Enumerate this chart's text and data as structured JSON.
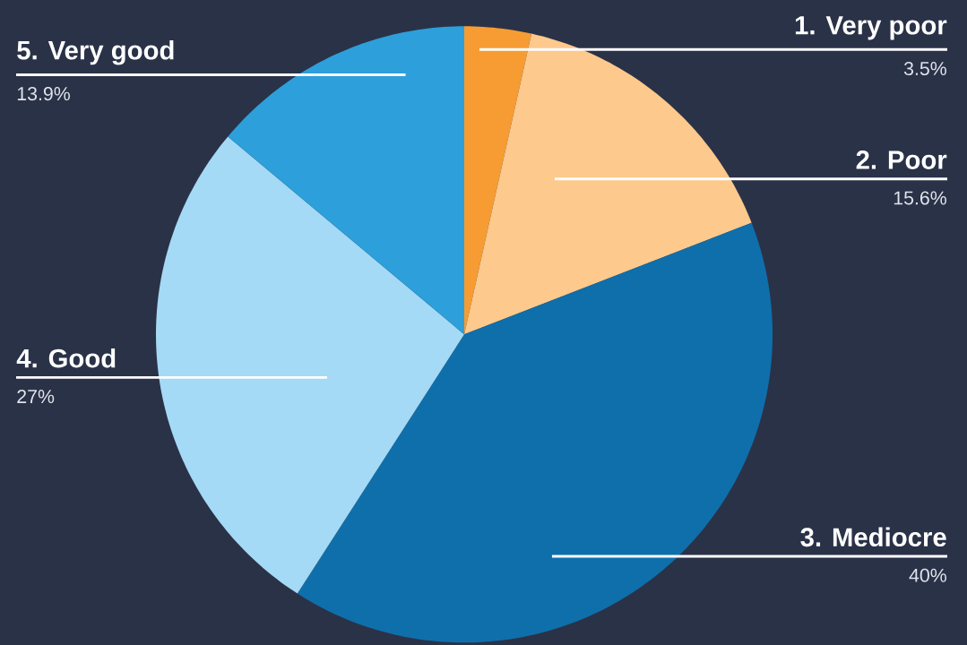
{
  "chart_data": {
    "type": "pie",
    "categories": [
      "1. Very poor",
      "2. Poor",
      "3. Mediocre",
      "4. Good",
      "5. Very good"
    ],
    "values": [
      3.5,
      15.6,
      40,
      27,
      13.9
    ],
    "colors": [
      "#f79c32",
      "#fdc98c",
      "#0f6fab",
      "#a4daf5",
      "#2d9fdb"
    ],
    "value_labels": [
      "3.5%",
      "15.6%",
      "40%",
      "27%",
      "13.9%"
    ]
  }
}
